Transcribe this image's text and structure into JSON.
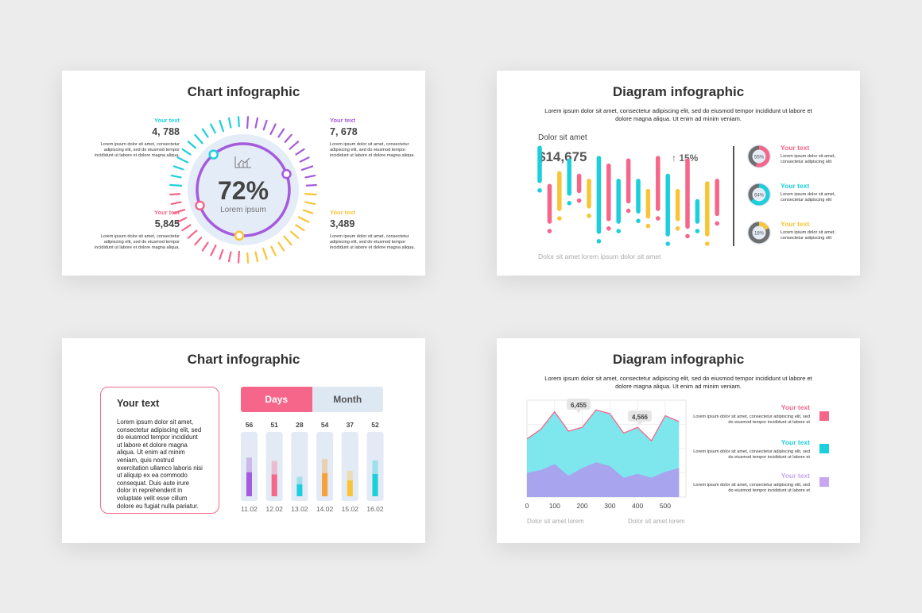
{
  "colors": {
    "pink": "#f6668a",
    "teal": "#1ccfdc",
    "purple": "#a55bdc",
    "yellow": "#f8c537",
    "orange": "#f8a13a",
    "lilac": "#c9a6f2",
    "grey": "#6f6f6f"
  },
  "slide1": {
    "title": "Chart infographic",
    "center_value": "72%",
    "center_label": "Lorem ipsum",
    "center_icon": "chart-icon",
    "blocks": [
      {
        "label": "Your text",
        "value": "4, 788",
        "color": "#1ccfdc",
        "text": "Lorem ipsum dolor sit amet, consectetur adipiscing elit, sed do eiusmod tempor incididunt ut labore et dolore magna aliqua."
      },
      {
        "label": "Your text",
        "value": "7, 678",
        "color": "#a55bdc",
        "text": "Lorem ipsum dolor sit amet, consectetur adipiscing elit, sed do eiusmod tempor incididunt ut labore et dolore magna aliqua."
      },
      {
        "label": "Your text",
        "value": "5,845",
        "color": "#f6668a",
        "text": "Lorem ipsum dolor sit amet, consectetur adipiscing elit, sed do eiusmod tempor incididunt ut labore et dolore magna aliqua."
      },
      {
        "label": "Your text",
        "value": "3,489",
        "color": "#f8c537",
        "text": "Lorem ipsum dolor sit amet, consectetur adipiscing elit, sed do eiusmod tempor incididunt ut labore et dolore magna aliqua."
      }
    ]
  },
  "slide2": {
    "title": "Diagram infographic",
    "desc": "Lorem ipsum dolor sit amet, consectetur adipiscing elit, sed do eiusmod tempor incididunt ut labore et dolore magna aliqua. Ut enim ad minim veniam.",
    "subtitle": "Dolor sit amet",
    "big_value": "$14,675",
    "change": "↑ 15%",
    "footer": "Dolor sit amet lorem ipsum dolor sit amet",
    "items": [
      {
        "label": "Your text",
        "pct": "55%",
        "fraction": 0.55,
        "color": "#f6668a",
        "text": "Lorem ipsum dolor sit amet, consectetur adipiscing elit"
      },
      {
        "label": "Your text",
        "pct": "64%",
        "fraction": 0.64,
        "color": "#1ccfdc",
        "text": "Lorem ipsum dolor sit amet, consectetur adipiscing elit"
      },
      {
        "label": "Your text",
        "pct": "18%",
        "fraction": 0.18,
        "color": "#f8c537",
        "text": "Lorem ipsum dolor sit amet, consectetur adipiscing elit"
      }
    ]
  },
  "slide3": {
    "title": "Chart infographic",
    "box_title": "Your text",
    "box_text": "Lorem ipsum dolor sit amet, consectetur adipiscing elit, sed do eiusmod tempor incididunt ut labore et dolore magna aliqua. Ut enim ad minim veniam, quis nostrud exercitation ullamco laboris nisi ut aliquip ex ea commodo consequat. Duis aute irure dolor in reprehenderit in voluptate velit esse cillum dolore eu fugiat nulla pariatur.",
    "tab_days": "Days",
    "tab_month": "Month"
  },
  "slide4": {
    "title": "Diagram infographic",
    "desc": "Lorem ipsum dolor sit amet, consectetur adipiscing elit, sed do eiusmod tempor incididunt ut labore et dolore magna aliqua. Ut enim ad minim veniam.",
    "callout1": "6,455",
    "callout2": "4,566",
    "foot_left": "Dolor sit amet lorem",
    "foot_right": "Dolor sit amet lorem",
    "items": [
      {
        "label": "Your text",
        "color": "#f6668a",
        "text": "Lorem ipsum dolor sit amet, consectetur adipiscing elit, sed do eiusmod tempor incididunt ut labore et"
      },
      {
        "label": "Your text",
        "color": "#1ccfdc",
        "text": "Lorem ipsum dolor sit amet, consectetur adipiscing elit, sed do eiusmod tempor incididunt ut labore et"
      },
      {
        "label": "Your text",
        "color": "#c9a6f2",
        "text": "Lorem ipsum dolor sit amet, consectetur adipiscing elit, sed do eiusmod tempor incididunt ut labore et"
      }
    ]
  },
  "chart_data": [
    {
      "type": "pie",
      "title": "",
      "values": [
        72
      ],
      "center_label": "72%"
    },
    {
      "type": "bar",
      "title": "",
      "series": [
        {
          "values": [
            [
              22,
              48
            ],
            [
              -10,
              18
            ],
            [
              0,
              28
            ],
            [
              12,
              38
            ],
            [
              14,
              26
            ],
            [
              2,
              22
            ],
            [
              -18,
              40
            ],
            [
              -8,
              34
            ],
            [
              -10,
              22
            ],
            [
              6,
              38
            ],
            [
              -2,
              22
            ],
            [
              -6,
              14
            ],
            [
              0,
              40
            ],
            [
              -20,
              26
            ],
            [
              -8,
              14
            ],
            [
              -14,
              38
            ],
            [
              -10,
              6
            ],
            [
              -20,
              20
            ],
            [
              -4,
              22
            ]
          ]
        }
      ]
    },
    {
      "type": "bar",
      "title": "",
      "categories": [
        "11.02",
        "12.02",
        "13.02",
        "14.02",
        "15.02",
        "16.02"
      ],
      "values": [
        56,
        51,
        28,
        54,
        37,
        52
      ],
      "ylim": [
        0,
        100
      ]
    },
    {
      "type": "area",
      "title": "",
      "x": [
        0,
        50,
        100,
        150,
        200,
        250,
        300,
        350,
        400,
        450,
        500,
        550
      ],
      "xticks": [
        0,
        100,
        200,
        300,
        400,
        500
      ],
      "series": [
        {
          "values": [
            25,
            28,
            34,
            22,
            30,
            36,
            32,
            20,
            24,
            20,
            26,
            30
          ]
        },
        {
          "values": [
            60,
            70,
            88,
            68,
            72,
            90,
            86,
            66,
            72,
            58,
            84,
            78
          ]
        }
      ],
      "ylim": [
        0,
        100
      ]
    }
  ]
}
